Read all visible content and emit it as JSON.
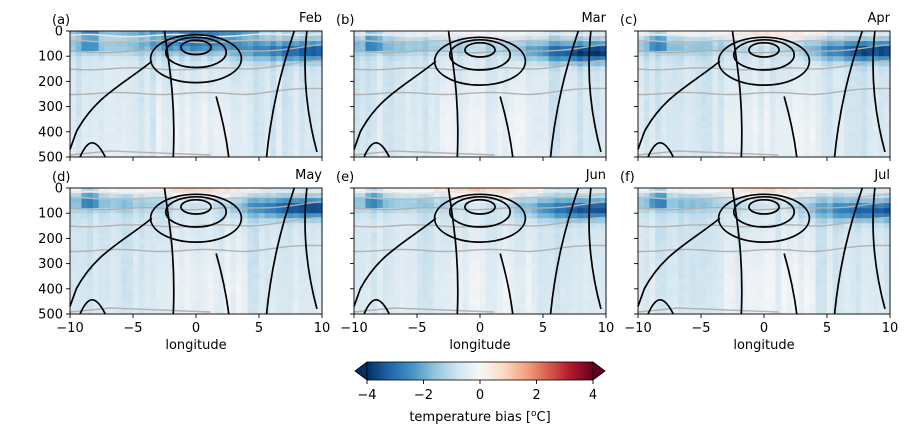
{
  "chart_data": {
    "type": "heatmap",
    "description_free": true,
    "colorbar": {
      "label": "temperature bias [$^o$C]",
      "label_text": "temperature bias [",
      "label_sup": "o",
      "label_tail": "C]",
      "range": [
        -4,
        4
      ],
      "ticks": [
        "−4",
        "−2",
        "0",
        "2",
        "4"
      ],
      "tick_values": [
        -4,
        -2,
        0,
        2,
        4
      ],
      "colormap": "RdBu_r",
      "extend": "both"
    },
    "shared_axes": {
      "xlabel": "longitude",
      "xlim": [
        -10,
        10
      ],
      "x_ticks": [
        "−10",
        "−5",
        "0",
        "5",
        "10"
      ],
      "x_tick_values": [
        -10,
        -5,
        0,
        5,
        10
      ],
      "ylim": [
        500,
        0
      ],
      "y_ticks": [
        "0",
        "100",
        "200",
        "300",
        "400",
        "500"
      ],
      "y_tick_values": [
        0,
        100,
        200,
        300,
        400,
        500
      ]
    },
    "panels": [
      {
        "letter": "(a)",
        "month": "Feb",
        "core_bias": -2.6,
        "surface_bias": -1.4,
        "core_depth": 80
      },
      {
        "letter": "(b)",
        "month": "Mar",
        "core_bias": -3.2,
        "surface_bias": 0.6,
        "core_depth": 85
      },
      {
        "letter": "(c)",
        "month": "Apr",
        "core_bias": -3.0,
        "surface_bias": 1.0,
        "core_depth": 80
      },
      {
        "letter": "(d)",
        "month": "May",
        "core_bias": -3.0,
        "surface_bias": 1.2,
        "core_depth": 80
      },
      {
        "letter": "(e)",
        "month": "Jun",
        "core_bias": -2.8,
        "surface_bias": 1.3,
        "core_depth": 85
      },
      {
        "letter": "(f)",
        "month": "Jul",
        "core_bias": -2.6,
        "surface_bias": 1.1,
        "core_depth": 90
      }
    ],
    "colors": {
      "contour_black": "#000000",
      "contour_gray": "#b0b0b0",
      "contour_light": "#e6e6e6"
    }
  }
}
